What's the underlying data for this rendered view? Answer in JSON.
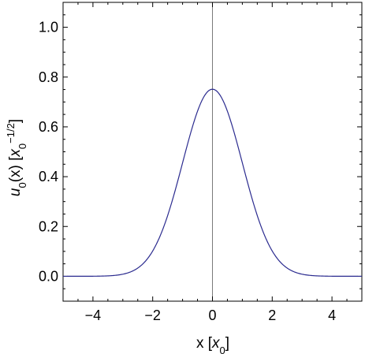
{
  "chart_data": {
    "type": "line",
    "function": "u0(x) = pi^(-1/4) * exp(-x^2/2)",
    "x_range": [
      -5,
      5
    ],
    "ylim": [
      -0.1,
      1.1
    ],
    "xticks": [
      -4,
      -2,
      0,
      2,
      4
    ],
    "xtick_labels": [
      "−4",
      "−2",
      "0",
      "2",
      "4"
    ],
    "yticks": [
      0.0,
      0.2,
      0.4,
      0.6,
      0.8,
      1.0
    ],
    "ytick_labels": [
      "0.0",
      "0.2",
      "0.4",
      "0.6",
      "0.8",
      "1.0"
    ],
    "xlabel": {
      "text": "x [",
      "var": "x",
      "sub": "0",
      "close": "]"
    },
    "ylabel": {
      "fn": "u",
      "fn_sub": "0",
      "arg": "(x) [",
      "var": "x",
      "sub": "0",
      "sup": "−1/2",
      "close": "]"
    },
    "series": [
      {
        "x": [
          -5.0,
          -4.5,
          -4.0,
          -3.5,
          -3.0,
          -2.5,
          -2.0,
          -1.5,
          -1.0,
          -0.5,
          0.0,
          0.5,
          1.0,
          1.5,
          2.0,
          2.5,
          3.0,
          3.5,
          4.0,
          4.5,
          5.0
        ],
        "y": [
          0.0,
          0.0,
          0.0003,
          0.0016,
          0.0084,
          0.033,
          0.1016,
          0.2435,
          0.4556,
          0.6631,
          0.7511,
          0.6631,
          0.4556,
          0.2435,
          0.1016,
          0.033,
          0.0084,
          0.0016,
          0.0003,
          0.0,
          0.0
        ]
      }
    ],
    "colors": {
      "curve": "#2b2b8f",
      "frame": "#000000",
      "zero_axis": "#7a7a7a"
    },
    "grid": false,
    "legend": "none"
  }
}
